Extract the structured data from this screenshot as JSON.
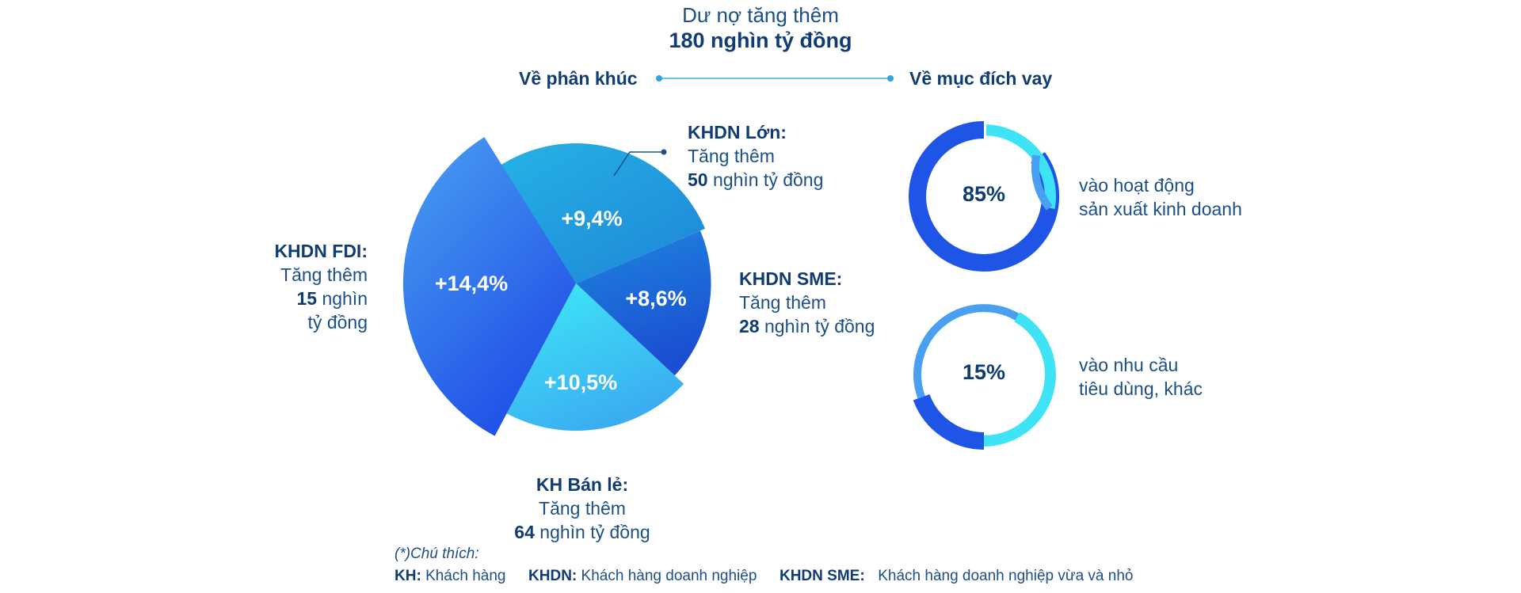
{
  "header": {
    "subtitle": "Dư nợ tăng thêm",
    "total": "180 nghìn tỷ đồng"
  },
  "sections": {
    "left": "Về phân khúc",
    "right": "Về mục đích vay"
  },
  "chart_data": [
    {
      "type": "pie",
      "title": "Về phân khúc",
      "slices": [
        {
          "name": "KHDN Lớn",
          "label": "+9,4%",
          "value": 9.4,
          "increase_text": "Tăng thêm",
          "increase_value": "50",
          "increase_unit": "nghìn tỷ đồng",
          "color": "#2aa6e0"
        },
        {
          "name": "KHDN SME",
          "label": "+8,6%",
          "value": 8.6,
          "increase_text": "Tăng thêm",
          "increase_value": "28",
          "increase_unit": "nghìn tỷ đồng",
          "color": "#1565d6"
        },
        {
          "name": "KH Bán lẻ",
          "label": "+10,5%",
          "value": 10.5,
          "increase_text": "Tăng thêm",
          "increase_value": "64",
          "increase_unit": "nghìn tỷ đồng",
          "color": "#2ed3f0"
        },
        {
          "name": "KHDN FDI",
          "label": "+14,4%",
          "value": 14.4,
          "increase_text": "Tăng thêm",
          "increase_value": "15",
          "increase_unit_line1": "nghìn",
          "increase_unit_line2": "tỷ đồng",
          "color": "#2f6fe8"
        }
      ]
    },
    {
      "type": "pie",
      "title": "Về mục đích vay",
      "donuts": [
        {
          "label": "85%",
          "value": 85,
          "desc_line1": "vào hoạt động",
          "desc_line2": "sản xuất kinh doanh",
          "main_color": "#1f55e6",
          "rest_color": "#4aa0f0",
          "accent_color": "#3ee3f5"
        },
        {
          "label": "15%",
          "value": 15,
          "desc_line1": "vào nhu cầu",
          "desc_line2": "tiêu dùng, khác",
          "main_color": "#1f55e6",
          "rest_color": "#4aa0f0",
          "accent_color": "#3ee3f5"
        }
      ]
    }
  ],
  "notes": {
    "heading": "(*)Chú thích:",
    "items": [
      {
        "abbr": "KH:",
        "text": "Khách hàng"
      },
      {
        "abbr": "KHDN:",
        "text": "Khách hàng doanh nghiệp"
      },
      {
        "abbr": "KHDN SME:",
        "text": "Khách hàng doanh nghiệp vừa và nhỏ"
      }
    ]
  }
}
